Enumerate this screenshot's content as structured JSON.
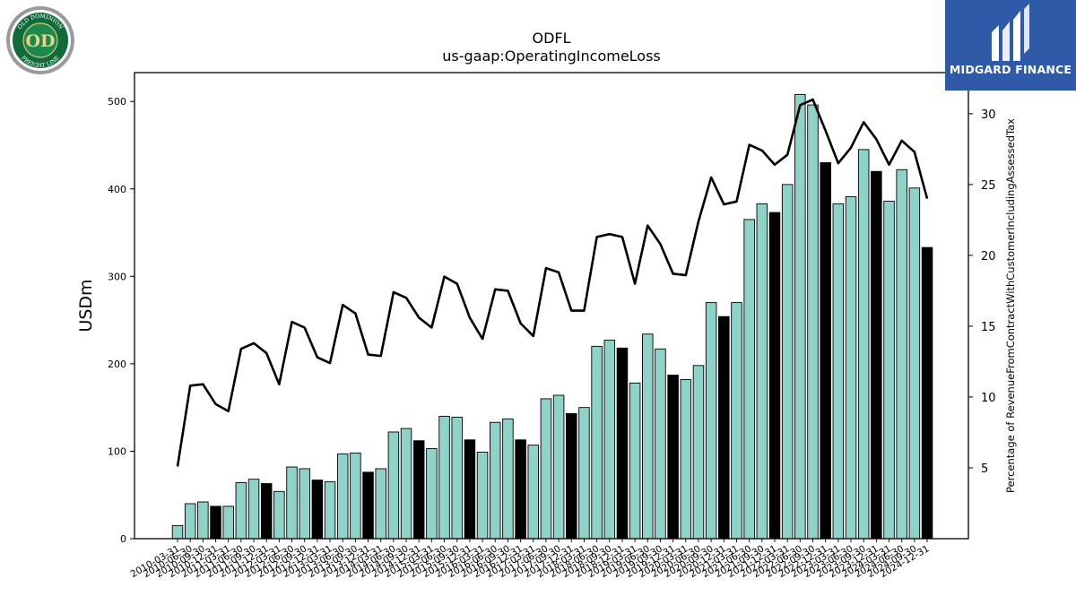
{
  "logos": {
    "left_text_top": "OLD DOMINION",
    "left_text_bottom": "FREIGHT LINE",
    "left_monogram": "OD",
    "right_text": "MIDGARD FINANCE"
  },
  "colors": {
    "bar_teal": "#8fd3c8",
    "bar_black": "#000000",
    "line": "#000000",
    "brand_blue": "#2f5aa8"
  },
  "chart_data": {
    "type": "bar",
    "title": "ODFL",
    "subtitle": "us-gaap:OperatingIncomeLoss",
    "ylabel": "USDm",
    "y2label": "Percentage of RevenueFromContractWithCustomerIncludingAssessedTax",
    "ylim": [
      0,
      533
    ],
    "y2lim": [
      0,
      32.9
    ],
    "yticks": [
      0,
      100,
      200,
      300,
      400,
      500
    ],
    "y2ticks": [
      5,
      10,
      15,
      20,
      25,
      30
    ],
    "categories": [
      "2010-03-31",
      "2010-06-30",
      "2010-09-30",
      "2010-12-31",
      "2011-03-31",
      "2011-06-30",
      "2011-09-30",
      "2011-12-31",
      "2012-03-31",
      "2012-06-30",
      "2012-09-30",
      "2012-12-31",
      "2013-03-31",
      "2013-06-30",
      "2013-09-30",
      "2013-12-31",
      "2014-03-31",
      "2014-06-30",
      "2014-09-30",
      "2014-12-31",
      "2015-03-31",
      "2015-06-30",
      "2015-09-30",
      "2015-12-31",
      "2016-03-31",
      "2016-06-30",
      "2016-09-30",
      "2016-12-31",
      "2017-03-31",
      "2017-06-30",
      "2017-09-30",
      "2017-12-31",
      "2018-03-31",
      "2018-06-30",
      "2018-09-30",
      "2018-12-31",
      "2019-03-31",
      "2019-06-30",
      "2019-09-30",
      "2019-12-31",
      "2020-03-31",
      "2020-06-30",
      "2020-09-30",
      "2020-12-31",
      "2021-03-31",
      "2021-06-30",
      "2021-09-30",
      "2021-12-31",
      "2022-03-31",
      "2022-06-30",
      "2022-09-30",
      "2022-12-31",
      "2023-03-31",
      "2023-06-30",
      "2023-09-30",
      "2023-12-31",
      "2024-03-31",
      "2024-06-30",
      "2024-09-30",
      "2024-12-31"
    ],
    "bar_values": [
      15,
      40,
      42,
      37,
      37,
      64,
      68,
      63,
      54,
      82,
      80,
      67,
      65,
      97,
      98,
      76,
      80,
      122,
      126,
      112,
      103,
      140,
      139,
      113,
      99,
      133,
      137,
      113,
      107,
      160,
      164,
      143,
      150,
      220,
      227,
      218,
      178,
      234,
      217,
      187,
      182,
      198,
      270,
      254,
      270,
      365,
      383,
      373,
      405,
      508,
      496,
      430,
      383,
      391,
      445,
      420,
      386,
      422,
      401,
      333
    ],
    "bar_highlight": [
      false,
      false,
      false,
      true,
      false,
      false,
      false,
      true,
      false,
      false,
      false,
      true,
      false,
      false,
      false,
      true,
      false,
      false,
      false,
      true,
      false,
      false,
      false,
      true,
      false,
      false,
      false,
      true,
      false,
      false,
      false,
      true,
      false,
      false,
      false,
      true,
      false,
      false,
      false,
      true,
      false,
      false,
      false,
      true,
      false,
      false,
      false,
      true,
      false,
      false,
      false,
      true,
      false,
      false,
      false,
      true,
      false,
      false,
      false,
      true
    ],
    "line_values": [
      5.1,
      10.8,
      10.9,
      9.5,
      9.0,
      13.4,
      13.8,
      13.1,
      10.9,
      15.3,
      14.9,
      12.8,
      12.4,
      16.5,
      15.9,
      13.0,
      12.9,
      17.4,
      17.0,
      15.6,
      14.9,
      18.5,
      18.0,
      15.6,
      14.1,
      17.6,
      17.5,
      15.2,
      14.3,
      19.1,
      18.8,
      16.1,
      16.1,
      21.3,
      21.5,
      21.3,
      18.0,
      22.1,
      20.8,
      18.7,
      18.6,
      22.4,
      25.5,
      23.6,
      23.8,
      27.8,
      27.4,
      26.4,
      27.1,
      30.6,
      31.0,
      28.8,
      26.5,
      27.6,
      29.4,
      28.2,
      26.4,
      28.1,
      27.3,
      24.0
    ]
  }
}
